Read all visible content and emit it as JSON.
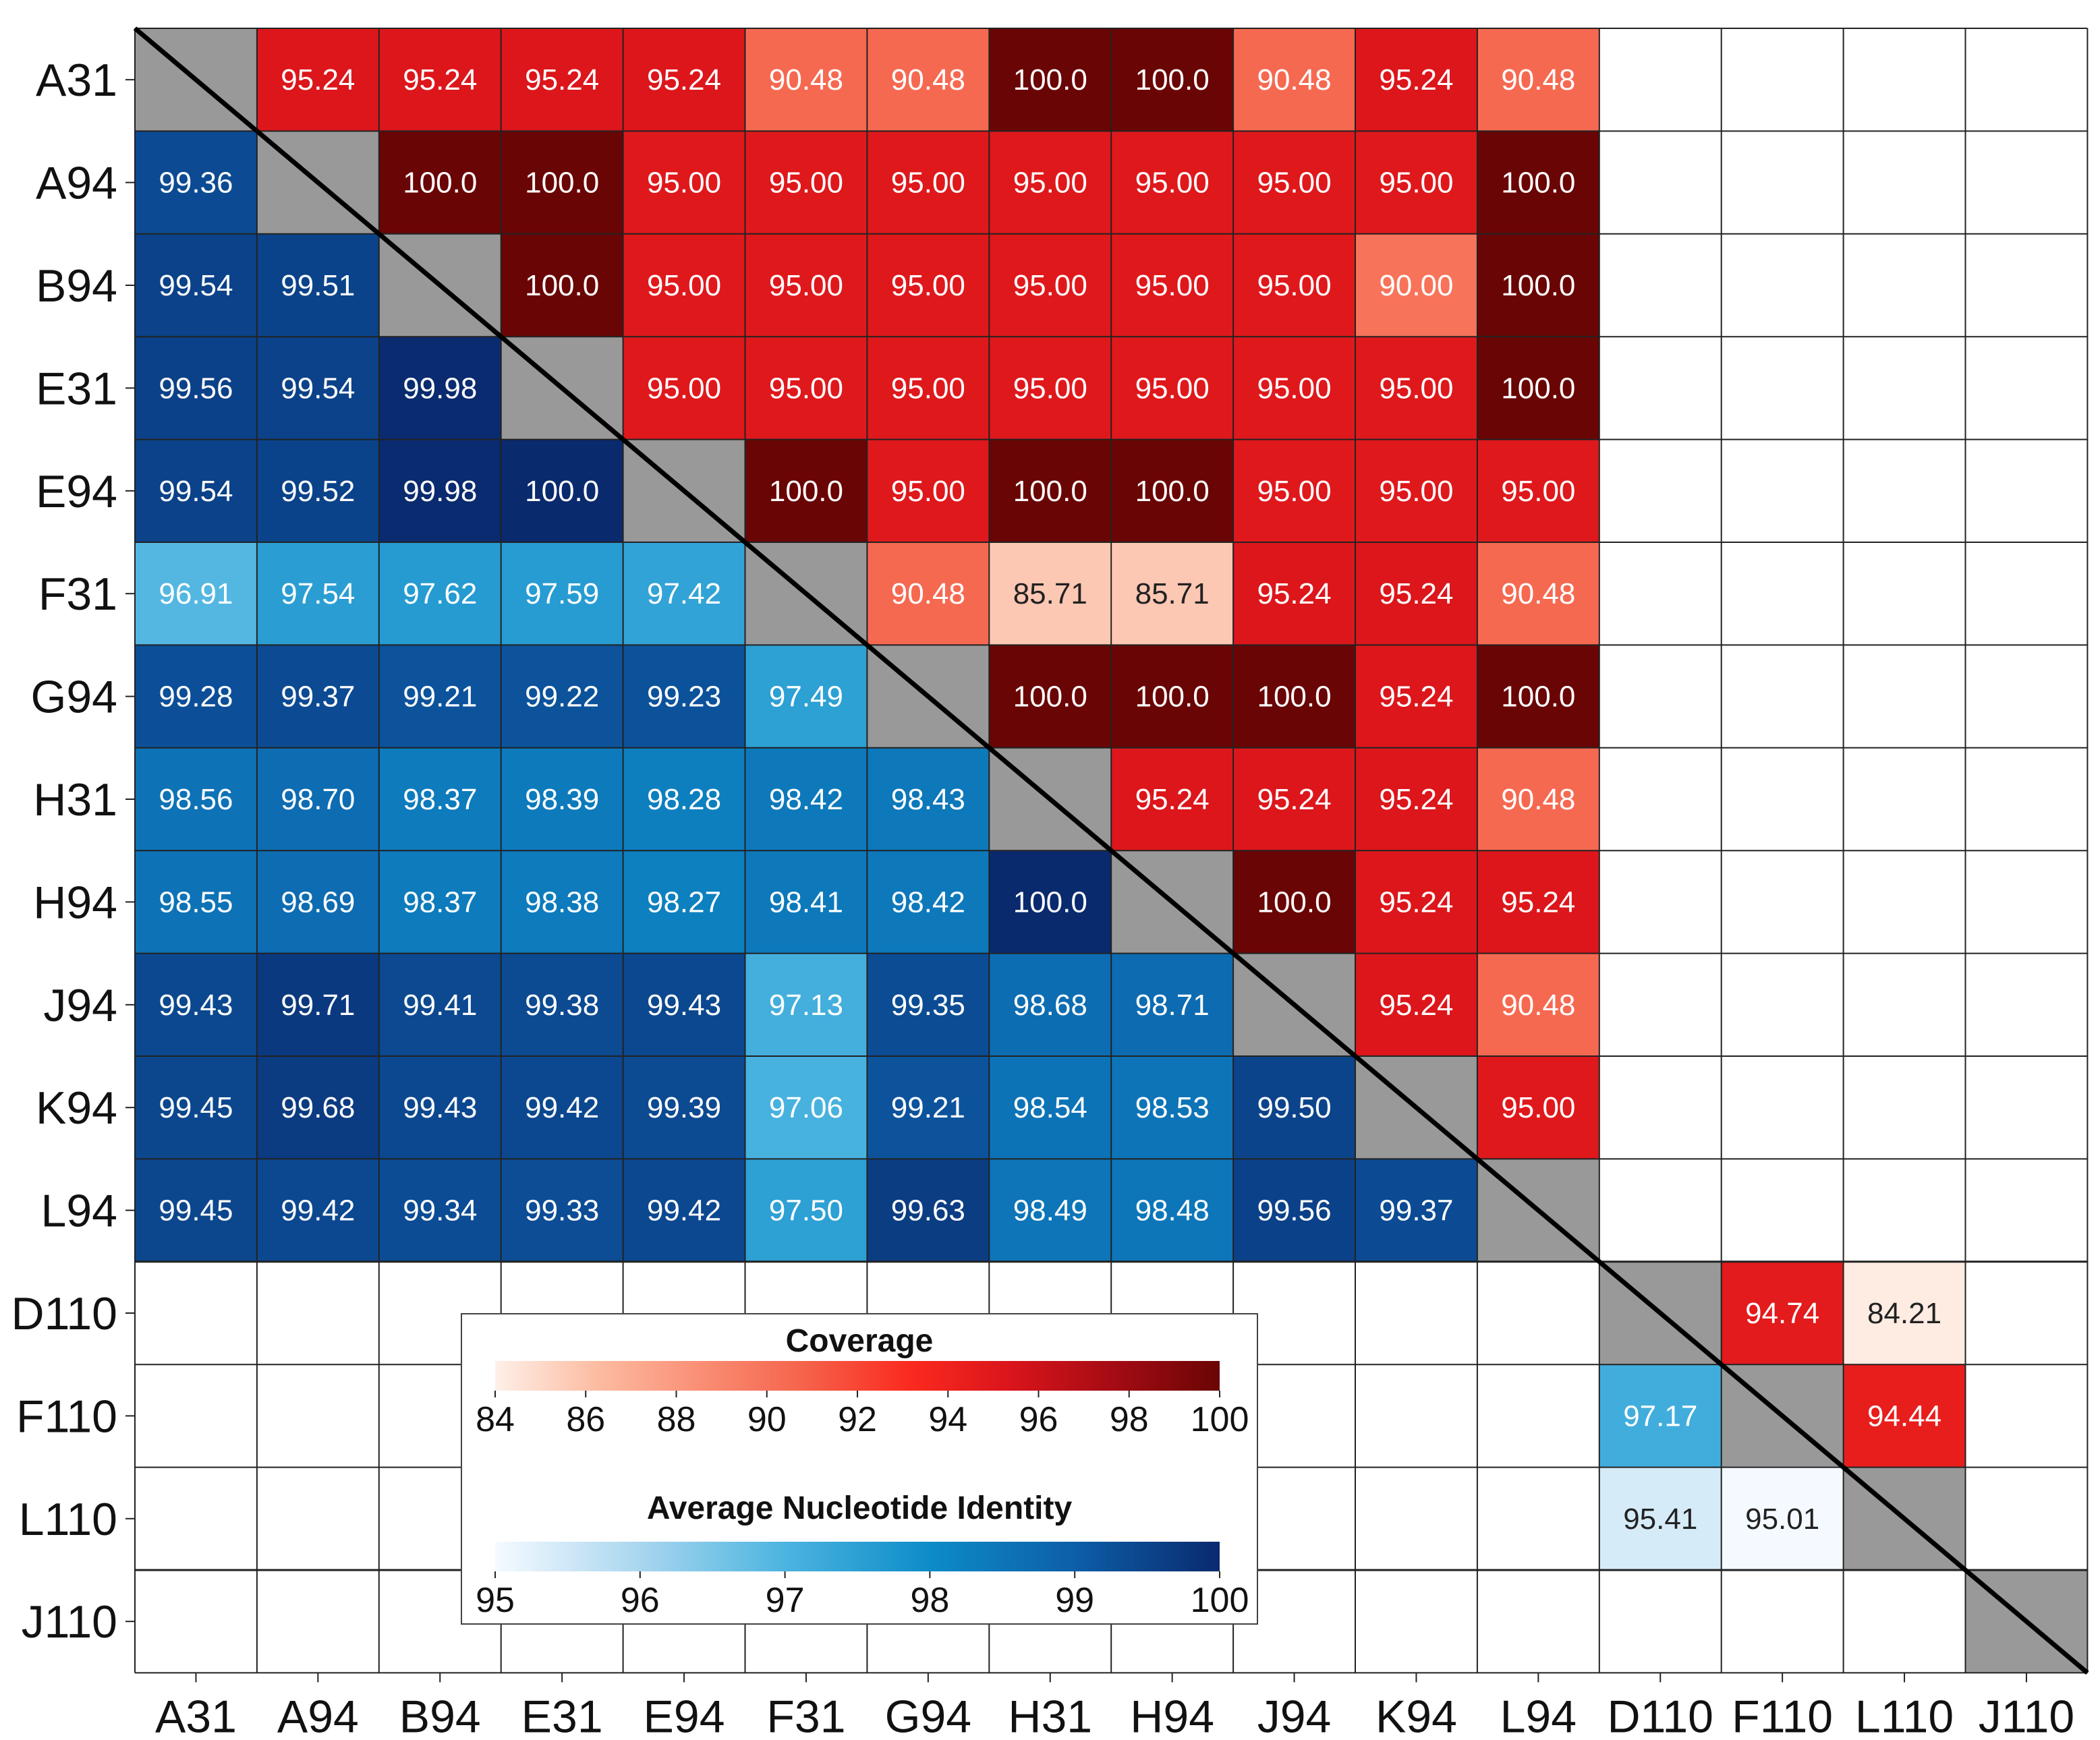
{
  "chart_data": {
    "type": "heatmap",
    "title": "",
    "xlabel": "",
    "ylabel": "",
    "labels": [
      "A31",
      "A94",
      "B94",
      "E31",
      "E94",
      "F31",
      "G94",
      "H31",
      "H94",
      "J94",
      "K94",
      "L94",
      "D110",
      "F110",
      "L110",
      "J110"
    ],
    "upper_triangle_metric": "Coverage",
    "lower_triangle_metric": "Average Nucleotide Identity",
    "matrix": [
      [
        null,
        "95.24",
        "95.24",
        "95.24",
        "95.24",
        "90.48",
        "90.48",
        "100.0",
        "100.0",
        "90.48",
        "95.24",
        "90.48",
        null,
        null,
        null,
        null
      ],
      [
        "99.36",
        null,
        "100.0",
        "100.0",
        "95.00",
        "95.00",
        "95.00",
        "95.00",
        "95.00",
        "95.00",
        "95.00",
        "100.0",
        null,
        null,
        null,
        null
      ],
      [
        "99.54",
        "99.51",
        null,
        "100.0",
        "95.00",
        "95.00",
        "95.00",
        "95.00",
        "95.00",
        "95.00",
        "90.00",
        "100.0",
        null,
        null,
        null,
        null
      ],
      [
        "99.56",
        "99.54",
        "99.98",
        null,
        "95.00",
        "95.00",
        "95.00",
        "95.00",
        "95.00",
        "95.00",
        "95.00",
        "100.0",
        null,
        null,
        null,
        null
      ],
      [
        "99.54",
        "99.52",
        "99.98",
        "100.0",
        null,
        "100.0",
        "95.00",
        "100.0",
        "100.0",
        "95.00",
        "95.00",
        "95.00",
        null,
        null,
        null,
        null
      ],
      [
        "96.91",
        "97.54",
        "97.62",
        "97.59",
        "97.42",
        null,
        "90.48",
        "85.71",
        "85.71",
        "95.24",
        "95.24",
        "90.48",
        null,
        null,
        null,
        null
      ],
      [
        "99.28",
        "99.37",
        "99.21",
        "99.22",
        "99.23",
        "97.49",
        null,
        "100.0",
        "100.0",
        "100.0",
        "95.24",
        "100.0",
        null,
        null,
        null,
        null
      ],
      [
        "98.56",
        "98.70",
        "98.37",
        "98.39",
        "98.28",
        "98.42",
        "98.43",
        null,
        "95.24",
        "95.24",
        "95.24",
        "90.48",
        null,
        null,
        null,
        null
      ],
      [
        "98.55",
        "98.69",
        "98.37",
        "98.38",
        "98.27",
        "98.41",
        "98.42",
        "100.0",
        null,
        "100.0",
        "95.24",
        "95.24",
        null,
        null,
        null,
        null
      ],
      [
        "99.43",
        "99.71",
        "99.41",
        "99.38",
        "99.43",
        "97.13",
        "99.35",
        "98.68",
        "98.71",
        null,
        "95.24",
        "90.48",
        null,
        null,
        null,
        null
      ],
      [
        "99.45",
        "99.68",
        "99.43",
        "99.42",
        "99.39",
        "97.06",
        "99.21",
        "98.54",
        "98.53",
        "99.50",
        null,
        "95.00",
        null,
        null,
        null,
        null
      ],
      [
        "99.45",
        "99.42",
        "99.34",
        "99.33",
        "99.42",
        "97.50",
        "99.63",
        "98.49",
        "98.48",
        "99.56",
        "99.37",
        null,
        null,
        null,
        null,
        null
      ],
      [
        null,
        null,
        null,
        null,
        null,
        null,
        null,
        null,
        null,
        null,
        null,
        null,
        null,
        "94.74",
        "84.21",
        null
      ],
      [
        null,
        null,
        null,
        null,
        null,
        null,
        null,
        null,
        null,
        null,
        null,
        null,
        "97.17",
        null,
        "94.44",
        null
      ],
      [
        null,
        null,
        null,
        null,
        null,
        null,
        null,
        null,
        null,
        null,
        null,
        null,
        "95.41",
        "95.01",
        null,
        null
      ],
      [
        null,
        null,
        null,
        null,
        null,
        null,
        null,
        null,
        null,
        null,
        null,
        null,
        null,
        null,
        null,
        null
      ]
    ],
    "blocks": [
      {
        "start": 0,
        "end": 11
      },
      {
        "start": 12,
        "end": 14
      },
      {
        "start": 15,
        "end": 15
      }
    ],
    "coverage_scale": {
      "title": "Coverage",
      "range": [
        84,
        100
      ],
      "ticks": [
        "84",
        "86",
        "88",
        "90",
        "92",
        "94",
        "96",
        "98",
        "100"
      ],
      "colors": [
        "#fef0e8",
        "#fcbba1",
        "#f98e74",
        "#f5624a",
        "#fb2a1f",
        "#d9141b",
        "#a30b13",
        "#6a0505"
      ]
    },
    "ani_scale": {
      "title": "Average Nucleotide Identity",
      "range": [
        95,
        100
      ],
      "ticks": [
        "95",
        "96",
        "97",
        "98",
        "99",
        "100"
      ],
      "colors": [
        "#f5faff",
        "#a9d6ef",
        "#4cb4e0",
        "#0d8cc8",
        "#0d5ea8",
        "#0a2a6e"
      ]
    },
    "diagonal_color": "#999999"
  }
}
